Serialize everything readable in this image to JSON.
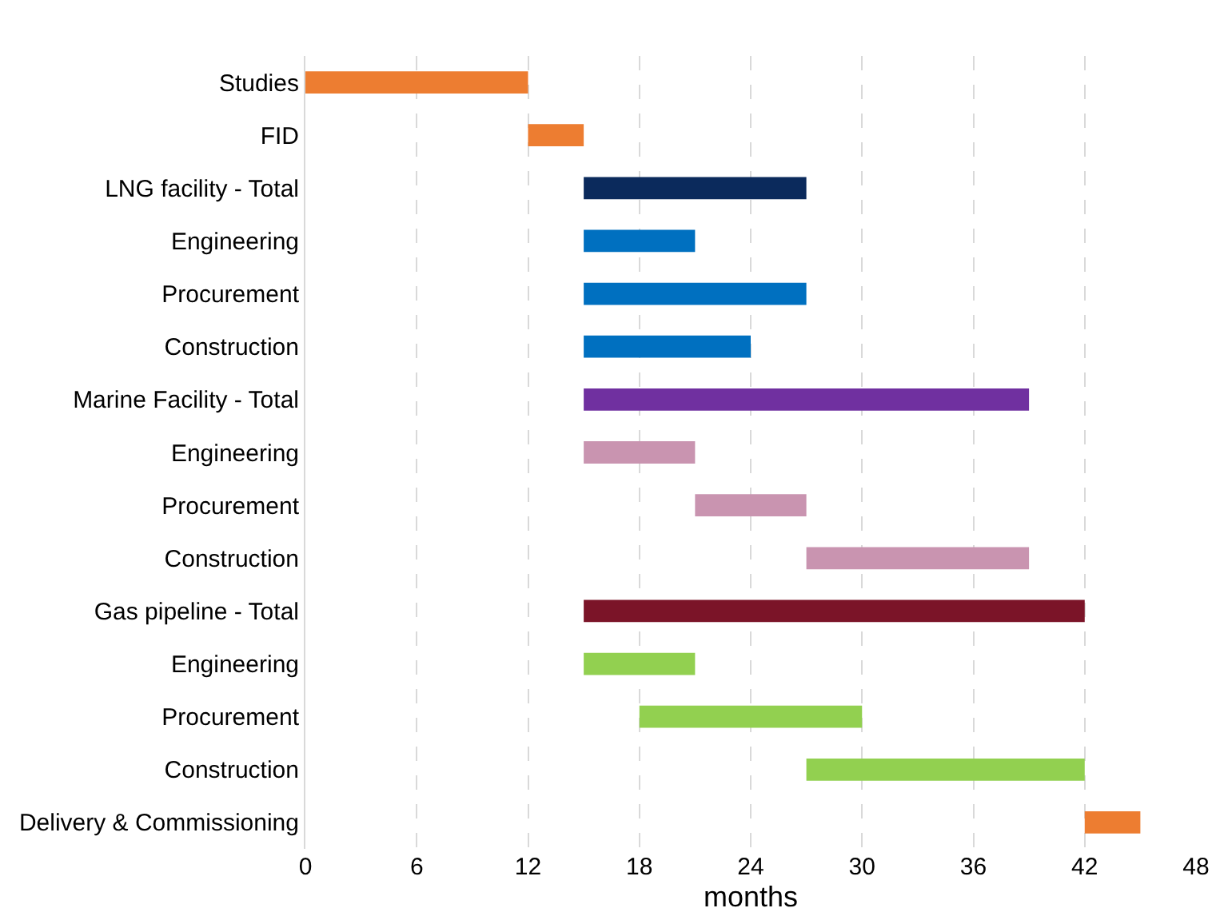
{
  "chart_data": {
    "type": "bar",
    "orientation": "horizontal",
    "xlabel": "months",
    "categories": [
      "Studies",
      "FID",
      "LNG facility - Total",
      "Engineering",
      "Procurement",
      "Construction",
      "Marine Facility - Total",
      "Engineering",
      "Procurement",
      "Construction",
      "Gas pipeline - Total",
      "Engineering",
      "Procurement",
      "Construction",
      "Delivery & Commissioning"
    ],
    "base": [
      0,
      12,
      15,
      15,
      15,
      15,
      15,
      15,
      21,
      27,
      15,
      15,
      18,
      27,
      42
    ],
    "values": [
      12,
      3,
      12,
      6,
      12,
      9,
      24,
      6,
      6,
      12,
      27,
      6,
      12,
      15,
      3
    ],
    "colors": [
      "#ed7d31",
      "#ed7d31",
      "#0b2a5c",
      "#0070c0",
      "#0070c0",
      "#0070c0",
      "#7030a0",
      "#c994b0",
      "#c994b0",
      "#c994b0",
      "#7b1428",
      "#92d050",
      "#92d050",
      "#92d050",
      "#ed7d31"
    ],
    "xlim": [
      0,
      48
    ],
    "xticks": [
      0,
      6,
      12,
      18,
      24,
      30,
      36,
      42,
      48
    ],
    "grid": "x"
  }
}
